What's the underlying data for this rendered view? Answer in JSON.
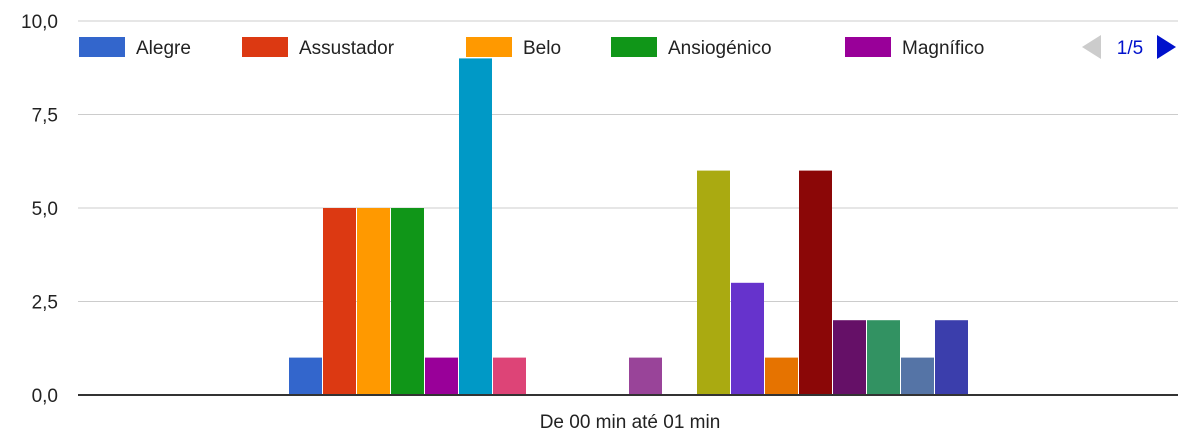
{
  "chart_data": {
    "type": "bar",
    "categories": [
      "De 00 min até 01 min"
    ],
    "ylim": [
      0,
      10
    ],
    "yticks": [
      "0,0",
      "2,5",
      "5,0",
      "7,5",
      "10,0"
    ],
    "ytick_values": [
      0,
      2.5,
      5,
      7.5,
      10
    ],
    "grid": true,
    "legend_position": "top",
    "legend_page": "1/5",
    "series": [
      {
        "name": "Alegre",
        "value": 1,
        "color": "#3366cc"
      },
      {
        "name": "Assustador",
        "value": 5,
        "color": "#dc3912"
      },
      {
        "name": "Belo",
        "value": 5,
        "color": "#ff9900"
      },
      {
        "name": "Ansiogénico",
        "value": 5,
        "color": "#109618"
      },
      {
        "name": "Magnífico",
        "value": 1,
        "color": "#990099"
      },
      {
        "name": "",
        "value": 9,
        "color": "#0099c6"
      },
      {
        "name": "",
        "value": 1,
        "color": "#dd4477"
      },
      {
        "name": "",
        "value": 0,
        "color": "#66aa00"
      },
      {
        "name": "",
        "value": 0,
        "color": "#b82e2e"
      },
      {
        "name": "",
        "value": 0,
        "color": "#316395"
      },
      {
        "name": "",
        "value": 1,
        "color": "#994499"
      },
      {
        "name": "",
        "value": 0,
        "color": "#22aa99"
      },
      {
        "name": "",
        "value": 6,
        "color": "#aaaa11"
      },
      {
        "name": "",
        "value": 3,
        "color": "#6633cc"
      },
      {
        "name": "",
        "value": 1,
        "color": "#e67300"
      },
      {
        "name": "",
        "value": 6,
        "color": "#8b0707"
      },
      {
        "name": "",
        "value": 2,
        "color": "#651067"
      },
      {
        "name": "",
        "value": 2,
        "color": "#329262"
      },
      {
        "name": "",
        "value": 1,
        "color": "#5574a6"
      },
      {
        "name": "",
        "value": 2,
        "color": "#3b3eac"
      }
    ]
  },
  "colors": {
    "grid": "#cccccc",
    "axis": "#333333",
    "text": "#222222",
    "nav_active": "#0011cc",
    "nav_inactive": "#cccccc"
  }
}
